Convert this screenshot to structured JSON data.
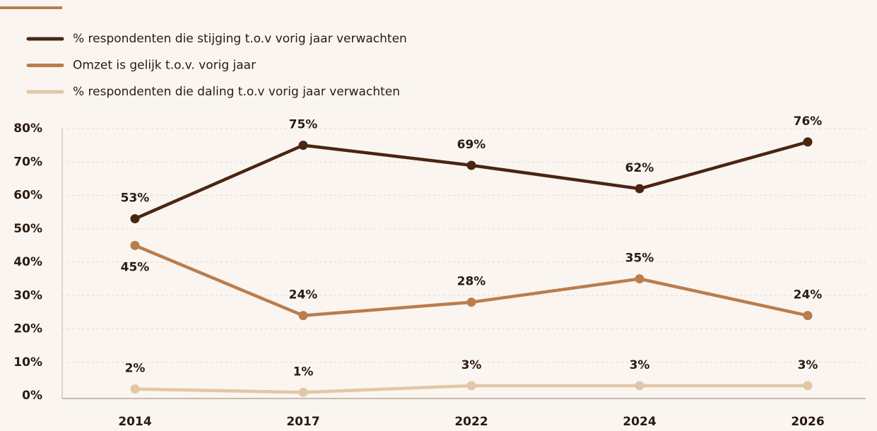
{
  "chart_data": {
    "type": "line",
    "categories": [
      "2014",
      "2017",
      "2022",
      "2024",
      "2026"
    ],
    "series": [
      {
        "name": "% respondenten die stijging t.o.v vorig jaar verwachten",
        "color": "#4a2512",
        "values": [
          53,
          75,
          69,
          62,
          76
        ],
        "value_labels": [
          "53%",
          "75%",
          "69%",
          "62%",
          "76%"
        ]
      },
      {
        "name": "Omzet is gelijk t.o.v. vorig jaar",
        "color": "#b97d4e",
        "values": [
          45,
          24,
          28,
          35,
          24
        ],
        "value_labels": [
          "45%",
          "24%",
          "28%",
          "35%",
          "24%"
        ]
      },
      {
        "name": "% respondenten die daling t.o.v vorig jaar verwachten",
        "color": "#e2c6a6",
        "values": [
          2,
          1,
          3,
          3,
          3
        ],
        "value_labels": [
          "2%",
          "1%",
          "3%",
          "3%",
          "3%"
        ]
      }
    ],
    "ylim": [
      0,
      80
    ],
    "yticks": [
      {
        "value": 0,
        "label": "0%"
      },
      {
        "value": 10,
        "label": "10%"
      },
      {
        "value": 20,
        "label": "20%"
      },
      {
        "value": 30,
        "label": "30%"
      },
      {
        "value": 40,
        "label": "40%"
      },
      {
        "value": 50,
        "label": "50%"
      },
      {
        "value": 60,
        "label": "60%"
      },
      {
        "value": 70,
        "label": "70%"
      },
      {
        "value": 80,
        "label": "80%"
      }
    ],
    "grid": true
  }
}
